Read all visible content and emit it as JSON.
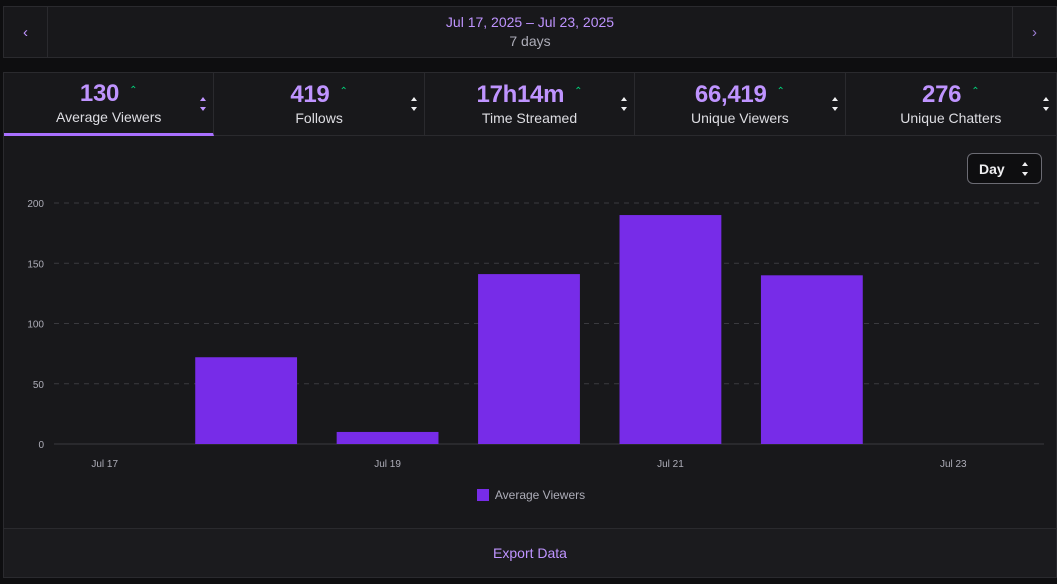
{
  "date_range": {
    "label": "Jul 17, 2025 – Jul 23, 2025",
    "sub": "7 days",
    "prev_icon": "‹",
    "next_icon": "›"
  },
  "stats": [
    {
      "value": "130",
      "label": "Average Viewers",
      "trend_icon": "⌃",
      "active": true
    },
    {
      "value": "419",
      "label": "Follows",
      "trend_icon": "⌃",
      "active": false
    },
    {
      "value": "17h14m",
      "label": "Time Streamed",
      "trend_icon": "⌃",
      "active": false
    },
    {
      "value": "66,419",
      "label": "Unique Viewers",
      "trend_icon": "⌃",
      "active": false
    },
    {
      "value": "276",
      "label": "Unique Chatters",
      "trend_icon": "⌃",
      "active": false
    }
  ],
  "granularity": {
    "selected": "Day"
  },
  "colors": {
    "accent": "#bf94ff",
    "bar": "#772ce8",
    "trend_up": "#00d27a",
    "background": "#18181b"
  },
  "chart_data": {
    "type": "bar",
    "title": "",
    "xlabel": "",
    "ylabel": "",
    "categories": [
      "Jul 17",
      "Jul 18",
      "Jul 19",
      "Jul 20",
      "Jul 21",
      "Jul 22",
      "Jul 23"
    ],
    "x_tick_labels": [
      "Jul 17",
      "Jul 19",
      "Jul 21",
      "Jul 23"
    ],
    "series": [
      {
        "name": "Average Viewers",
        "values": [
          0,
          72,
          10,
          141,
          190,
          140,
          0
        ]
      }
    ],
    "ylim": [
      0,
      200
    ],
    "y_ticks": [
      0,
      50,
      100,
      150,
      200
    ],
    "grid": true,
    "legend_position": "bottom-center"
  },
  "footer": {
    "export_label": "Export Data"
  }
}
